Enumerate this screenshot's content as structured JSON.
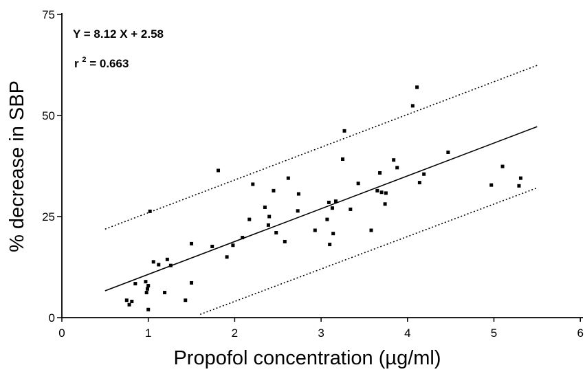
{
  "chart_data": {
    "type": "scatter",
    "title": "",
    "xlabel": "Propofol concentration (µg/ml)",
    "ylabel": "% decrease in SBP",
    "xlim": [
      0,
      6
    ],
    "ylim": [
      0,
      75
    ],
    "xticks": [
      "0",
      "1",
      "2",
      "3",
      "4",
      "5",
      "6"
    ],
    "yticks": [
      "0",
      "25",
      "50",
      "75"
    ],
    "grid": false,
    "annotations": {
      "equation": "Y = 8.12 X + 2.58",
      "r2_prefix": "r",
      "r2_sup": "2",
      "r2_suffix": "= 0.663"
    },
    "points": [
      [
        0.75,
        4.3
      ],
      [
        0.78,
        3.2
      ],
      [
        0.81,
        4.0
      ],
      [
        0.85,
        8.4
      ],
      [
        0.97,
        8.9
      ],
      [
        0.98,
        6.2
      ],
      [
        0.99,
        7.1
      ],
      [
        1.0,
        7.9
      ],
      [
        1.0,
        2.0
      ],
      [
        1.02,
        26.3
      ],
      [
        1.06,
        13.8
      ],
      [
        1.12,
        13.1
      ],
      [
        1.19,
        6.2
      ],
      [
        1.22,
        14.4
      ],
      [
        1.26,
        12.9
      ],
      [
        1.43,
        4.3
      ],
      [
        1.5,
        18.3
      ],
      [
        1.5,
        8.6
      ],
      [
        1.74,
        17.6
      ],
      [
        1.81,
        36.4
      ],
      [
        1.91,
        15.0
      ],
      [
        1.98,
        17.9
      ],
      [
        2.09,
        19.8
      ],
      [
        2.17,
        24.3
      ],
      [
        2.21,
        33.0
      ],
      [
        2.35,
        27.3
      ],
      [
        2.39,
        22.9
      ],
      [
        2.4,
        25.0
      ],
      [
        2.45,
        31.4
      ],
      [
        2.48,
        21.0
      ],
      [
        2.58,
        18.8
      ],
      [
        2.62,
        34.5
      ],
      [
        2.73,
        26.4
      ],
      [
        2.74,
        30.6
      ],
      [
        2.93,
        21.6
      ],
      [
        3.07,
        24.3
      ],
      [
        3.09,
        28.5
      ],
      [
        3.1,
        18.1
      ],
      [
        3.13,
        27.1
      ],
      [
        3.14,
        20.8
      ],
      [
        3.17,
        28.8
      ],
      [
        3.25,
        39.2
      ],
      [
        3.27,
        46.2
      ],
      [
        3.34,
        26.8
      ],
      [
        3.43,
        33.2
      ],
      [
        3.58,
        21.6
      ],
      [
        3.65,
        31.4
      ],
      [
        3.68,
        35.8
      ],
      [
        3.7,
        31.0
      ],
      [
        3.74,
        28.1
      ],
      [
        3.75,
        30.8
      ],
      [
        3.84,
        39.0
      ],
      [
        3.88,
        37.1
      ],
      [
        4.06,
        52.4
      ],
      [
        4.11,
        57.0
      ],
      [
        4.14,
        33.4
      ],
      [
        4.19,
        35.5
      ],
      [
        4.47,
        40.9
      ],
      [
        4.97,
        32.8
      ],
      [
        5.1,
        37.4
      ],
      [
        5.29,
        32.6
      ],
      [
        5.31,
        34.5
      ]
    ],
    "regression": {
      "slope": 8.12,
      "intercept": 2.58,
      "x_range": [
        0.5,
        5.5
      ]
    },
    "confidence_upper": [
      [
        0.5,
        21.9
      ],
      [
        5.5,
        62.4
      ]
    ],
    "confidence_lower": [
      [
        1.6,
        0.8
      ],
      [
        5.5,
        32.1
      ]
    ]
  }
}
